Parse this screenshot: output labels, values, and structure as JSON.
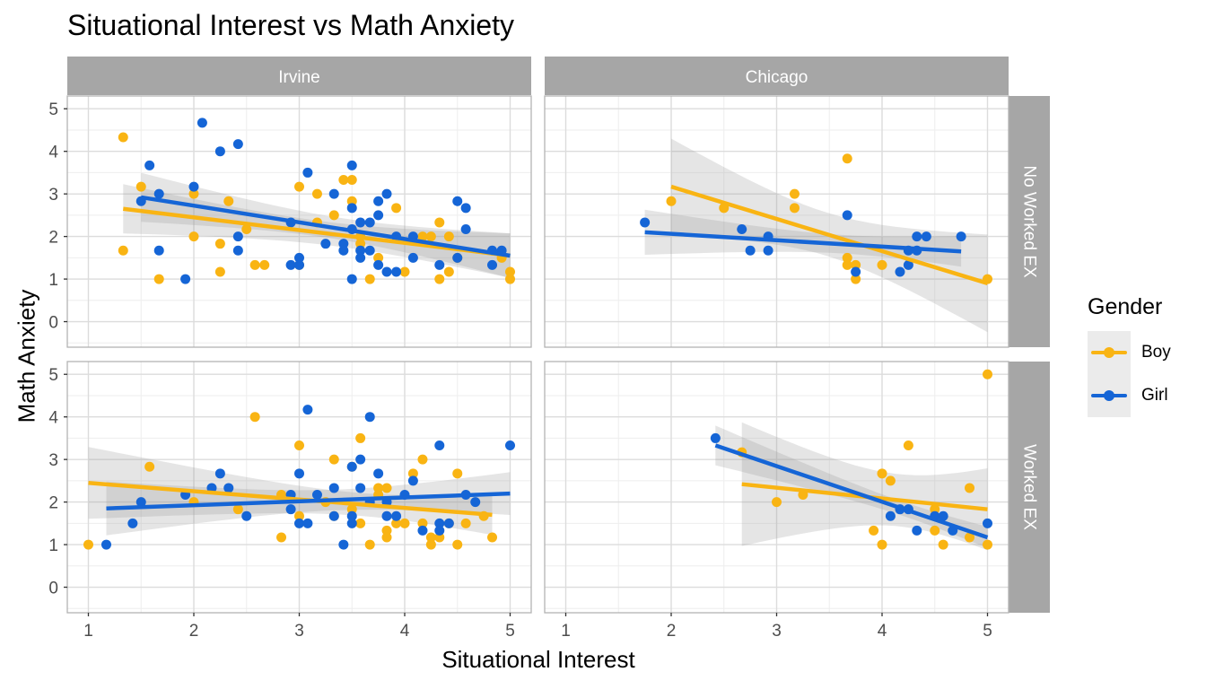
{
  "colors": {
    "Boy": "#F9B413",
    "Girl": "#1565D6"
  },
  "chart_data": {
    "type": "scatter",
    "title": "Situational Interest vs Math Anxiety",
    "xlabel": "Situational Interest",
    "ylabel": "Math Anxiety",
    "xlim": [
      0.8,
      5.2
    ],
    "ylim": [
      -0.6,
      5.3
    ],
    "xticks": [
      1,
      2,
      3,
      4,
      5
    ],
    "yticks": [
      0,
      1,
      2,
      3,
      4,
      5
    ],
    "facet_cols": [
      "Irvine",
      "Chicago"
    ],
    "facet_rows": [
      "No Worked EX",
      "Worked EX"
    ],
    "legend": {
      "title": "Gender",
      "position": "right",
      "entries": [
        "Boy",
        "Girl"
      ]
    },
    "panels": [
      {
        "col": "Irvine",
        "row": "No Worked EX",
        "series": [
          {
            "name": "Boy",
            "points": [
              [
                1.33,
                4.33
              ],
              [
                1.33,
                1.67
              ],
              [
                1.5,
                3.17
              ],
              [
                1.67,
                1.0
              ],
              [
                2.0,
                3.0
              ],
              [
                2.0,
                2.0
              ],
              [
                2.25,
                1.83
              ],
              [
                2.25,
                1.17
              ],
              [
                2.33,
                2.83
              ],
              [
                2.5,
                2.17
              ],
              [
                2.58,
                1.33
              ],
              [
                2.67,
                1.33
              ],
              [
                3.0,
                3.17
              ],
              [
                3.0,
                1.33
              ],
              [
                3.17,
                3.0
              ],
              [
                3.17,
                2.33
              ],
              [
                3.33,
                2.5
              ],
              [
                3.42,
                3.33
              ],
              [
                3.5,
                3.33
              ],
              [
                3.5,
                2.83
              ],
              [
                3.58,
                2.0
              ],
              [
                3.58,
                1.83
              ],
              [
                3.67,
                1.0
              ],
              [
                3.75,
                1.5
              ],
              [
                3.92,
                2.67
              ],
              [
                4.0,
                1.17
              ],
              [
                4.17,
                2.0
              ],
              [
                4.25,
                2.0
              ],
              [
                4.33,
                2.33
              ],
              [
                4.33,
                1.0
              ],
              [
                4.42,
                2.0
              ],
              [
                4.42,
                1.17
              ],
              [
                4.5,
                1.5
              ],
              [
                5.0,
                1.17
              ],
              [
                5.0,
                1.0
              ],
              [
                4.92,
                1.5
              ]
            ],
            "fit": {
              "x": [
                1.33,
                5.0
              ],
              "y": [
                2.65,
                1.55
              ]
            }
          },
          {
            "name": "Girl",
            "points": [
              [
                1.5,
                2.83
              ],
              [
                1.58,
                3.67
              ],
              [
                1.67,
                3.0
              ],
              [
                1.67,
                1.67
              ],
              [
                1.92,
                1.0
              ],
              [
                2.0,
                3.17
              ],
              [
                2.08,
                4.67
              ],
              [
                2.25,
                4.0
              ],
              [
                2.42,
                4.17
              ],
              [
                2.42,
                2.0
              ],
              [
                2.42,
                1.67
              ],
              [
                2.92,
                2.33
              ],
              [
                2.92,
                1.33
              ],
              [
                3.0,
                1.5
              ],
              [
                3.0,
                1.33
              ],
              [
                3.08,
                3.5
              ],
              [
                3.25,
                1.83
              ],
              [
                3.33,
                3.0
              ],
              [
                3.42,
                1.83
              ],
              [
                3.42,
                1.67
              ],
              [
                3.5,
                3.67
              ],
              [
                3.5,
                2.67
              ],
              [
                3.5,
                2.17
              ],
              [
                3.5,
                1.0
              ],
              [
                3.58,
                2.33
              ],
              [
                3.58,
                1.67
              ],
              [
                3.58,
                1.5
              ],
              [
                3.67,
                2.33
              ],
              [
                3.67,
                1.67
              ],
              [
                3.75,
                2.83
              ],
              [
                3.75,
                2.5
              ],
              [
                3.75,
                1.33
              ],
              [
                3.83,
                3.0
              ],
              [
                3.83,
                1.17
              ],
              [
                3.92,
                2.0
              ],
              [
                3.92,
                1.17
              ],
              [
                4.08,
                2.0
              ],
              [
                4.08,
                1.5
              ],
              [
                4.33,
                1.33
              ],
              [
                4.5,
                2.83
              ],
              [
                4.5,
                1.5
              ],
              [
                4.58,
                2.17
              ],
              [
                4.58,
                2.67
              ],
              [
                4.83,
                1.67
              ],
              [
                4.83,
                1.33
              ],
              [
                4.92,
                1.67
              ]
            ],
            "fit": {
              "x": [
                1.5,
                5.0
              ],
              "y": [
                2.92,
                1.55
              ]
            }
          }
        ]
      },
      {
        "col": "Chicago",
        "row": "No Worked EX",
        "series": [
          {
            "name": "Boy",
            "points": [
              [
                2.0,
                2.83
              ],
              [
                2.5,
                2.67
              ],
              [
                3.17,
                3.0
              ],
              [
                3.17,
                2.67
              ],
              [
                3.67,
                3.83
              ],
              [
                3.67,
                1.5
              ],
              [
                3.67,
                1.33
              ],
              [
                3.75,
                1.33
              ],
              [
                3.75,
                1.0
              ],
              [
                4.0,
                1.33
              ],
              [
                5.0,
                1.0
              ]
            ],
            "fit": {
              "x": [
                2.0,
                5.0
              ],
              "y": [
                3.17,
                0.9
              ]
            }
          },
          {
            "name": "Girl",
            "points": [
              [
                1.75,
                2.33
              ],
              [
                2.67,
                2.17
              ],
              [
                2.75,
                1.67
              ],
              [
                2.92,
                2.0
              ],
              [
                2.92,
                1.67
              ],
              [
                3.67,
                2.5
              ],
              [
                3.75,
                1.17
              ],
              [
                4.17,
                1.17
              ],
              [
                4.25,
                1.67
              ],
              [
                4.25,
                1.33
              ],
              [
                4.33,
                2.0
              ],
              [
                4.33,
                1.67
              ],
              [
                4.42,
                2.0
              ],
              [
                4.75,
                2.0
              ]
            ],
            "fit": {
              "x": [
                1.75,
                4.75
              ],
              "y": [
                2.1,
                1.65
              ]
            }
          }
        ]
      },
      {
        "col": "Irvine",
        "row": "Worked EX",
        "series": [
          {
            "name": "Boy",
            "points": [
              [
                1.0,
                1.0
              ],
              [
                1.58,
                2.83
              ],
              [
                2.0,
                2.0
              ],
              [
                2.42,
                1.83
              ],
              [
                2.58,
                4.0
              ],
              [
                2.83,
                2.17
              ],
              [
                2.83,
                1.17
              ],
              [
                3.0,
                3.33
              ],
              [
                3.0,
                1.67
              ],
              [
                3.25,
                2.0
              ],
              [
                3.33,
                3.0
              ],
              [
                3.33,
                1.67
              ],
              [
                3.5,
                2.83
              ],
              [
                3.5,
                1.83
              ],
              [
                3.58,
                3.5
              ],
              [
                3.58,
                1.5
              ],
              [
                3.67,
                1.0
              ],
              [
                3.75,
                2.33
              ],
              [
                3.75,
                2.17
              ],
              [
                3.83,
                2.33
              ],
              [
                3.83,
                1.33
              ],
              [
                3.83,
                1.17
              ],
              [
                3.92,
                1.5
              ],
              [
                4.0,
                1.5
              ],
              [
                4.08,
                2.67
              ],
              [
                4.17,
                3.0
              ],
              [
                4.17,
                1.5
              ],
              [
                4.25,
                1.17
              ],
              [
                4.25,
                1.0
              ],
              [
                4.33,
                1.17
              ],
              [
                4.42,
                1.5
              ],
              [
                4.5,
                2.67
              ],
              [
                4.5,
                1.0
              ],
              [
                4.58,
                1.5
              ],
              [
                4.75,
                1.67
              ],
              [
                4.83,
                1.17
              ]
            ],
            "fit": {
              "x": [
                1.0,
                4.83
              ],
              "y": [
                2.45,
                1.7
              ]
            }
          },
          {
            "name": "Girl",
            "points": [
              [
                1.17,
                1.0
              ],
              [
                1.42,
                1.5
              ],
              [
                1.5,
                2.0
              ],
              [
                1.92,
                2.17
              ],
              [
                2.17,
                2.33
              ],
              [
                2.25,
                2.67
              ],
              [
                2.33,
                2.33
              ],
              [
                2.5,
                1.67
              ],
              [
                2.92,
                2.17
              ],
              [
                2.92,
                1.83
              ],
              [
                3.0,
                2.67
              ],
              [
                3.0,
                1.5
              ],
              [
                3.08,
                4.17
              ],
              [
                3.08,
                1.5
              ],
              [
                3.17,
                2.17
              ],
              [
                3.33,
                2.33
              ],
              [
                3.33,
                1.67
              ],
              [
                3.42,
                1.0
              ],
              [
                3.5,
                2.83
              ],
              [
                3.5,
                1.67
              ],
              [
                3.5,
                1.5
              ],
              [
                3.58,
                3.0
              ],
              [
                3.58,
                2.33
              ],
              [
                3.67,
                4.0
              ],
              [
                3.67,
                2.0
              ],
              [
                3.75,
                2.67
              ],
              [
                3.83,
                2.0
              ],
              [
                3.83,
                1.67
              ],
              [
                3.92,
                1.67
              ],
              [
                4.0,
                2.17
              ],
              [
                4.08,
                2.5
              ],
              [
                4.17,
                1.33
              ],
              [
                4.33,
                3.33
              ],
              [
                4.33,
                1.5
              ],
              [
                4.33,
                1.33
              ],
              [
                4.42,
                1.5
              ],
              [
                4.58,
                2.17
              ],
              [
                4.67,
                2.0
              ],
              [
                5.0,
                3.33
              ]
            ],
            "fit": {
              "x": [
                1.17,
                5.0
              ],
              "y": [
                1.85,
                2.2
              ]
            }
          }
        ]
      },
      {
        "col": "Chicago",
        "row": "Worked EX",
        "series": [
          {
            "name": "Boy",
            "points": [
              [
                2.67,
                3.17
              ],
              [
                3.0,
                2.0
              ],
              [
                3.25,
                2.17
              ],
              [
                3.92,
                1.33
              ],
              [
                4.0,
                2.67
              ],
              [
                4.0,
                1.0
              ],
              [
                4.08,
                2.5
              ],
              [
                4.25,
                3.33
              ],
              [
                4.5,
                1.83
              ],
              [
                4.5,
                1.33
              ],
              [
                4.58,
                1.0
              ],
              [
                4.83,
                2.33
              ],
              [
                4.83,
                1.17
              ],
              [
                5.0,
                5.0
              ],
              [
                5.0,
                1.0
              ]
            ],
            "fit": {
              "x": [
                2.67,
                5.0
              ],
              "y": [
                2.42,
                1.83
              ]
            }
          },
          {
            "name": "Girl",
            "points": [
              [
                2.42,
                3.5
              ],
              [
                4.08,
                1.67
              ],
              [
                4.17,
                1.83
              ],
              [
                4.25,
                1.83
              ],
              [
                4.33,
                1.33
              ],
              [
                4.5,
                1.67
              ],
              [
                4.58,
                1.67
              ],
              [
                4.67,
                1.33
              ],
              [
                5.0,
                1.5
              ]
            ],
            "fit": {
              "x": [
                2.42,
                5.0
              ],
              "y": [
                3.33,
                1.17
              ]
            }
          }
        ]
      }
    ]
  }
}
